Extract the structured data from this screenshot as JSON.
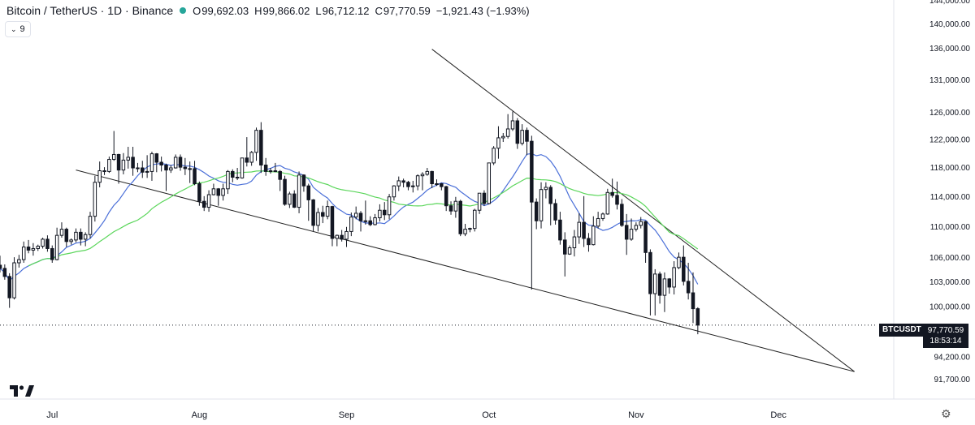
{
  "header": {
    "symbol": "Bitcoin / TetherUS · 1D · Binance",
    "open_label": "O",
    "open": "99,692.03",
    "high_label": "H",
    "high": "99,866.02",
    "low_label": "L",
    "low": "96,712.12",
    "close_label": "C",
    "close": "97,770.59",
    "change": "−1,921.43 (−1.93%)"
  },
  "indicator_toggle": {
    "count": "9"
  },
  "price_tag": {
    "symbol": "BTCUSDT",
    "price": "97,770.59",
    "countdown": "18:53:14"
  },
  "icons": {
    "logo": "tradingview-logo-icon",
    "settings": "gear-icon",
    "collapse": "chevron-down-icon"
  },
  "colors": {
    "up": "#26a69a",
    "down": "#131722",
    "ma_fast": "#4a6fd8",
    "ma_slow": "#5bd65b",
    "trendline": "#222222"
  },
  "chart_data": {
    "type": "candlestick",
    "yscale": "log",
    "ylim": [
      89700,
      144000
    ],
    "y_ticks": [
      {
        "value": 144000,
        "label": "144,000.00"
      },
      {
        "value": 140000,
        "label": "140,000.00"
      },
      {
        "value": 136000,
        "label": "136,000.00"
      },
      {
        "value": 131000,
        "label": "131,000.00"
      },
      {
        "value": 126000,
        "label": "126,000.00"
      },
      {
        "value": 122000,
        "label": "122,000.00"
      },
      {
        "value": 118000,
        "label": "118,000.00"
      },
      {
        "value": 114000,
        "label": "114,000.00"
      },
      {
        "value": 110000,
        "label": "110,000.00"
      },
      {
        "value": 106000,
        "label": "106,000.00"
      },
      {
        "value": 103000,
        "label": "103,000.00"
      },
      {
        "value": 100000,
        "label": "100,000.00"
      },
      {
        "value": 94200,
        "label": "94,200.00"
      },
      {
        "value": 91700,
        "label": "91,700.00"
      }
    ],
    "x_ticks": [
      {
        "date": "2025-07-01",
        "label": "Jul"
      },
      {
        "date": "2025-08-01",
        "label": "Aug"
      },
      {
        "date": "2025-09-01",
        "label": "Sep"
      },
      {
        "date": "2025-10-01",
        "label": "Oct"
      },
      {
        "date": "2025-11-01",
        "label": "Nov"
      },
      {
        "date": "2025-12-01",
        "label": "Dec"
      }
    ],
    "xlim": [
      "2025-06-20",
      "2025-12-21"
    ],
    "last_price": 97770.59,
    "ohlc": [
      [
        "2025-06-20",
        105000,
        106200,
        104100,
        104600
      ],
      [
        "2025-06-21",
        104600,
        105100,
        103200,
        103600
      ],
      [
        "2025-06-22",
        103600,
        104000,
        99800,
        101000
      ],
      [
        "2025-06-23",
        101000,
        106000,
        100800,
        105300
      ],
      [
        "2025-06-24",
        105300,
        106300,
        104700,
        105700
      ],
      [
        "2025-06-25",
        105700,
        108000,
        105300,
        107300
      ],
      [
        "2025-06-26",
        107300,
        108200,
        106500,
        106900
      ],
      [
        "2025-06-27",
        106900,
        107800,
        106200,
        107100
      ],
      [
        "2025-06-28",
        107100,
        107600,
        106800,
        107400
      ],
      [
        "2025-06-29",
        107400,
        108500,
        107100,
        108300
      ],
      [
        "2025-06-30",
        108300,
        108800,
        106700,
        107100
      ],
      [
        "2025-07-01",
        107100,
        107500,
        105300,
        105700
      ],
      [
        "2025-07-02",
        105700,
        109800,
        105600,
        108800
      ],
      [
        "2025-07-03",
        108800,
        110500,
        108500,
        109600
      ],
      [
        "2025-07-04",
        109600,
        109800,
        107300,
        108000
      ],
      [
        "2025-07-05",
        108000,
        108400,
        107600,
        108200
      ],
      [
        "2025-07-06",
        108200,
        109700,
        107900,
        109200
      ],
      [
        "2025-07-07",
        109200,
        109700,
        107500,
        108300
      ],
      [
        "2025-07-08",
        108300,
        109200,
        107400,
        108900
      ],
      [
        "2025-07-09",
        108900,
        111900,
        108400,
        111300
      ],
      [
        "2025-07-10",
        111300,
        116800,
        110600,
        115900
      ],
      [
        "2025-07-11",
        115900,
        118800,
        115200,
        117500
      ],
      [
        "2025-07-12",
        117500,
        118000,
        116900,
        117400
      ],
      [
        "2025-07-13",
        117400,
        119500,
        117200,
        119100
      ],
      [
        "2025-07-14",
        119100,
        123200,
        118900,
        119800
      ],
      [
        "2025-07-15",
        119800,
        119900,
        115700,
        117600
      ],
      [
        "2025-07-16",
        117600,
        120000,
        117000,
        119000
      ],
      [
        "2025-07-17",
        119000,
        120900,
        117800,
        119400
      ],
      [
        "2025-07-18",
        119400,
        120900,
        116800,
        117900
      ],
      [
        "2025-07-19",
        117900,
        118600,
        117300,
        117900
      ],
      [
        "2025-07-20",
        117900,
        118900,
        116500,
        117300
      ],
      [
        "2025-07-21",
        117300,
        119700,
        116500,
        117400
      ],
      [
        "2025-07-22",
        117400,
        120200,
        116100,
        119900
      ],
      [
        "2025-07-23",
        119900,
        120000,
        117300,
        118700
      ],
      [
        "2025-07-24",
        118700,
        119500,
        117400,
        118300
      ],
      [
        "2025-07-25",
        118300,
        118500,
        114700,
        117600
      ],
      [
        "2025-07-26",
        117600,
        118300,
        117200,
        117900
      ],
      [
        "2025-07-27",
        117900,
        119800,
        117800,
        119400
      ],
      [
        "2025-07-28",
        119400,
        119800,
        117500,
        118000
      ],
      [
        "2025-07-29",
        118000,
        119300,
        116900,
        117800
      ],
      [
        "2025-07-30",
        117800,
        118800,
        115800,
        117800
      ],
      [
        "2025-07-31",
        117800,
        118900,
        115500,
        115700
      ],
      [
        "2025-08-01",
        115700,
        116000,
        112700,
        113300
      ],
      [
        "2025-08-02",
        113300,
        114000,
        112000,
        112500
      ],
      [
        "2025-08-03",
        112500,
        114800,
        111900,
        114200
      ],
      [
        "2025-08-04",
        114200,
        115700,
        114100,
        115000
      ],
      [
        "2025-08-05",
        115000,
        115100,
        112700,
        114100
      ],
      [
        "2025-08-06",
        114100,
        115700,
        113400,
        115000
      ],
      [
        "2025-08-07",
        115000,
        117600,
        114300,
        117400
      ],
      [
        "2025-08-08",
        117400,
        117700,
        115900,
        116600
      ],
      [
        "2025-08-09",
        116600,
        117900,
        116200,
        116500
      ],
      [
        "2025-08-10",
        116500,
        119300,
        116400,
        119300
      ],
      [
        "2025-08-11",
        119300,
        122300,
        118100,
        118700
      ],
      [
        "2025-08-12",
        118700,
        120300,
        118200,
        120100
      ],
      [
        "2025-08-13",
        120100,
        123700,
        118900,
        123300
      ],
      [
        "2025-08-14",
        123300,
        124500,
        117200,
        118300
      ],
      [
        "2025-08-15",
        118300,
        119300,
        116800,
        117400
      ],
      [
        "2025-08-16",
        117400,
        117900,
        117100,
        117500
      ],
      [
        "2025-08-17",
        117500,
        118600,
        117300,
        117400
      ],
      [
        "2025-08-18",
        117400,
        117600,
        114700,
        116300
      ],
      [
        "2025-08-19",
        116300,
        116800,
        112700,
        112900
      ],
      [
        "2025-08-20",
        112900,
        114600,
        112400,
        114300
      ],
      [
        "2025-08-21",
        114300,
        114800,
        112400,
        112500
      ],
      [
        "2025-08-22",
        112500,
        117400,
        111700,
        116900
      ],
      [
        "2025-08-23",
        116900,
        117000,
        114600,
        115400
      ],
      [
        "2025-08-24",
        115400,
        115700,
        110700,
        113500
      ],
      [
        "2025-08-25",
        113500,
        113600,
        109300,
        110100
      ],
      [
        "2025-08-26",
        110100,
        112400,
        109300,
        111800
      ],
      [
        "2025-08-27",
        111800,
        112700,
        110400,
        111300
      ],
      [
        "2025-08-28",
        111300,
        113400,
        110900,
        112600
      ],
      [
        "2025-08-29",
        112600,
        112700,
        107400,
        108400
      ],
      [
        "2025-08-30",
        108400,
        108900,
        107400,
        108800
      ],
      [
        "2025-08-31",
        108800,
        109500,
        108000,
        108300
      ],
      [
        "2025-09-01",
        108300,
        109900,
        107300,
        109300
      ],
      [
        "2025-09-02",
        109300,
        111800,
        108700,
        111200
      ],
      [
        "2025-09-03",
        111200,
        112600,
        110900,
        111700
      ],
      [
        "2025-09-04",
        111700,
        112000,
        109300,
        110700
      ],
      [
        "2025-09-05",
        110700,
        113400,
        110200,
        110700
      ],
      [
        "2025-09-06",
        110700,
        111300,
        110000,
        110200
      ],
      [
        "2025-09-07",
        110200,
        111600,
        110100,
        111100
      ],
      [
        "2025-09-08",
        111100,
        112900,
        110600,
        112100
      ],
      [
        "2025-09-09",
        112100,
        113200,
        110800,
        111500
      ],
      [
        "2025-09-10",
        111500,
        114300,
        110900,
        113900
      ],
      [
        "2025-09-11",
        113900,
        115500,
        113400,
        115400
      ],
      [
        "2025-09-12",
        115400,
        116700,
        114700,
        116100
      ],
      [
        "2025-09-13",
        116100,
        116400,
        115200,
        115900
      ],
      [
        "2025-09-14",
        115900,
        116100,
        114800,
        115300
      ],
      [
        "2025-09-15",
        115300,
        116100,
        114500,
        115400
      ],
      [
        "2025-09-16",
        115400,
        117000,
        114800,
        116800
      ],
      [
        "2025-09-17",
        116800,
        117300,
        114800,
        117000
      ],
      [
        "2025-09-18",
        117000,
        117900,
        116800,
        117400
      ],
      [
        "2025-09-19",
        117400,
        117500,
        115100,
        115700
      ],
      [
        "2025-09-20",
        115700,
        116300,
        115400,
        115700
      ],
      [
        "2025-09-21",
        115700,
        115800,
        114800,
        115300
      ],
      [
        "2025-09-22",
        115300,
        115400,
        112000,
        112700
      ],
      [
        "2025-09-23",
        112700,
        113300,
        111500,
        112000
      ],
      [
        "2025-09-24",
        112000,
        113900,
        111100,
        113300
      ],
      [
        "2025-09-25",
        113300,
        113500,
        108700,
        109000
      ],
      [
        "2025-09-26",
        109000,
        110300,
        108700,
        109600
      ],
      [
        "2025-09-27",
        109600,
        109800,
        109200,
        109700
      ],
      [
        "2025-09-28",
        109700,
        112300,
        109300,
        112100
      ],
      [
        "2025-09-29",
        112100,
        114400,
        111600,
        114400
      ],
      [
        "2025-09-30",
        114400,
        114800,
        112700,
        113000
      ],
      [
        "2025-10-01",
        113000,
        118600,
        112900,
        118600
      ],
      [
        "2025-10-02",
        118600,
        121000,
        118300,
        120700
      ],
      [
        "2025-10-03",
        120700,
        123900,
        119200,
        122200
      ],
      [
        "2025-10-04",
        122200,
        122900,
        121600,
        122400
      ],
      [
        "2025-10-05",
        122400,
        125700,
        122100,
        123500
      ],
      [
        "2025-10-06",
        123500,
        126100,
        123200,
        124700
      ],
      [
        "2025-10-07",
        124700,
        125100,
        120600,
        121400
      ],
      [
        "2025-10-08",
        121400,
        124200,
        121100,
        123300
      ],
      [
        "2025-10-09",
        123300,
        123700,
        119700,
        121700
      ],
      [
        "2025-10-10",
        121700,
        122500,
        102000,
        113200
      ],
      [
        "2025-10-11",
        113200,
        113700,
        109600,
        110700
      ],
      [
        "2025-10-12",
        110700,
        115900,
        109700,
        114900
      ],
      [
        "2025-10-13",
        114900,
        115900,
        113700,
        115200
      ],
      [
        "2025-10-14",
        115200,
        115500,
        110100,
        113000
      ],
      [
        "2025-10-15",
        113000,
        113600,
        110200,
        110800
      ],
      [
        "2025-10-16",
        110800,
        111900,
        107600,
        108200
      ],
      [
        "2025-10-17",
        108200,
        109200,
        103600,
        106400
      ],
      [
        "2025-10-18",
        106400,
        107500,
        106300,
        107200
      ],
      [
        "2025-10-19",
        107200,
        109500,
        106100,
        108600
      ],
      [
        "2025-10-20",
        108600,
        111700,
        107700,
        110500
      ],
      [
        "2025-10-21",
        110500,
        114000,
        107300,
        108400
      ],
      [
        "2025-10-22",
        108400,
        109100,
        106700,
        107600
      ],
      [
        "2025-10-23",
        107600,
        111300,
        107500,
        110000
      ],
      [
        "2025-10-24",
        110000,
        111900,
        109700,
        111000
      ],
      [
        "2025-10-25",
        111000,
        111800,
        110700,
        111600
      ],
      [
        "2025-10-26",
        111600,
        115000,
        111500,
        114500
      ],
      [
        "2025-10-27",
        114500,
        116400,
        113800,
        114100
      ],
      [
        "2025-10-28",
        114100,
        116000,
        112200,
        112900
      ],
      [
        "2025-10-29",
        112900,
        113600,
        109900,
        110100
      ],
      [
        "2025-10-30",
        110100,
        111600,
        106300,
        108300
      ],
      [
        "2025-10-31",
        108300,
        111000,
        108100,
        109600
      ],
      [
        "2025-11-01",
        109600,
        110500,
        109300,
        110100
      ],
      [
        "2025-11-02",
        110100,
        111200,
        109700,
        110600
      ],
      [
        "2025-11-03",
        110600,
        110700,
        105300,
        106600
      ],
      [
        "2025-11-04",
        106600,
        107000,
        98900,
        101500
      ],
      [
        "2025-11-05",
        101500,
        104500,
        98900,
        103900
      ],
      [
        "2025-11-06",
        103900,
        104200,
        100300,
        101300
      ],
      [
        "2025-11-07",
        101300,
        104100,
        99300,
        103300
      ],
      [
        "2025-11-08",
        103300,
        103400,
        101500,
        102300
      ],
      [
        "2025-11-09",
        102300,
        105500,
        101400,
        104700
      ],
      [
        "2025-11-10",
        104700,
        106600,
        104500,
        106000
      ],
      [
        "2025-11-11",
        106000,
        107500,
        102500,
        103000
      ],
      [
        "2025-11-12",
        103000,
        105300,
        100800,
        101600
      ],
      [
        "2025-11-13",
        101600,
        104100,
        98000,
        99700
      ],
      [
        "2025-11-14",
        99700,
        99870,
        96710,
        97770
      ]
    ]
  }
}
